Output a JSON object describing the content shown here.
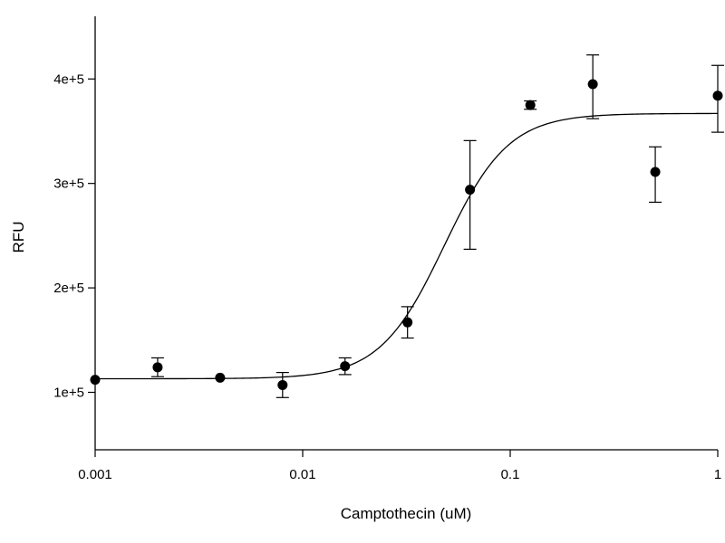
{
  "chart_data": {
    "type": "scatter",
    "title": "",
    "xlabel": "Camptothecin (uM)",
    "ylabel": "RFU",
    "x_scale": "log",
    "xlim": [
      0.001,
      1
    ],
    "ylim": [
      45000,
      460000
    ],
    "grid": false,
    "x_ticks": [
      {
        "value": 0.001,
        "label": "0.001"
      },
      {
        "value": 0.01,
        "label": "0.01"
      },
      {
        "value": 0.1,
        "label": "0.1"
      },
      {
        "value": 1,
        "label": "1"
      }
    ],
    "y_ticks": [
      {
        "value": 100000,
        "label": "1e+5"
      },
      {
        "value": 200000,
        "label": "2e+5"
      },
      {
        "value": 300000,
        "label": "3e+5"
      },
      {
        "value": 400000,
        "label": "4e+5"
      }
    ],
    "series": [
      {
        "points": [
          {
            "x": 0.001,
            "y": 112000,
            "err_low": 0,
            "err_high": 0
          },
          {
            "x": 0.002,
            "y": 124000,
            "err_low": 9000,
            "err_high": 9000
          },
          {
            "x": 0.004,
            "y": 114000,
            "err_low": 0,
            "err_high": 0
          },
          {
            "x": 0.008,
            "y": 107000,
            "err_low": 12000,
            "err_high": 12000
          },
          {
            "x": 0.016,
            "y": 125000,
            "err_low": 8000,
            "err_high": 8000
          },
          {
            "x": 0.032,
            "y": 167000,
            "err_low": 15000,
            "err_high": 15000
          },
          {
            "x": 0.064,
            "y": 294000,
            "err_low": 57000,
            "err_high": 47000
          },
          {
            "x": 0.125,
            "y": 375000,
            "err_low": 4000,
            "err_high": 4000
          },
          {
            "x": 0.25,
            "y": 395000,
            "err_low": 33000,
            "err_high": 28000
          },
          {
            "x": 0.5,
            "y": 311000,
            "err_low": 29000,
            "err_high": 24000
          },
          {
            "x": 1,
            "y": 384000,
            "err_low": 35000,
            "err_high": 29000
          }
        ]
      }
    ],
    "fit": {
      "model": "4PL",
      "bottom": 113000,
      "top": 367000,
      "ec50": 0.048,
      "hill": 2.8,
      "x_range": [
        0.001,
        1
      ]
    }
  }
}
